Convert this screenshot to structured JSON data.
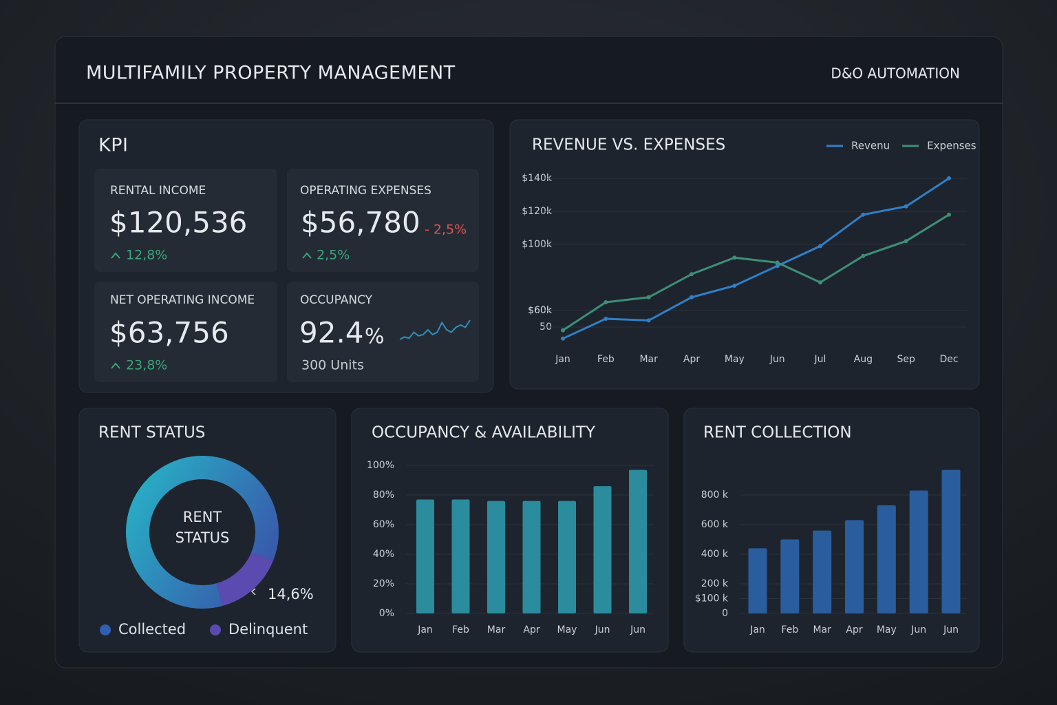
{
  "header": {
    "title": "MULTIFAMILY PROPERTY MANAGEMENT",
    "brand": "D&O AUTOMATION"
  },
  "kpi": {
    "title": "KPI",
    "cards": [
      {
        "label": "RENTAL INCOME",
        "value": "$120,536",
        "change": "12,8%"
      },
      {
        "label": "OPERATING EXPENSES",
        "value": "$56,780",
        "alt_change": "- 2,5%",
        "change": "2,5%"
      },
      {
        "label": "NET OPERATING INCOME",
        "value": "$63,756",
        "change": "23,8%"
      },
      {
        "label": "OCCUPANCY",
        "value": "92.4",
        "unit": "%",
        "note": "300 Units",
        "sparkline": [
          2,
          3,
          2.5,
          5,
          3.5,
          4,
          6,
          4,
          5,
          9,
          6,
          5,
          7,
          8,
          7,
          10
        ]
      }
    ]
  },
  "chart_data": [
    {
      "type": "line",
      "title": "REVENUE VS. EXPENSES",
      "categories": [
        "Jan",
        "Feb",
        "Mar",
        "Apr",
        "May",
        "Jun",
        "Jul",
        "Aug",
        "Sep",
        "Dec"
      ],
      "series": [
        {
          "name": "Revenu",
          "color": "#2f80c8",
          "values": [
            43,
            55,
            54,
            68,
            75,
            87,
            99,
            118,
            123,
            140
          ]
        },
        {
          "name": "Expenses",
          "color": "#3d8f78",
          "values": [
            48,
            65,
            68,
            82,
            92,
            89,
            77,
            93,
            102,
            118
          ]
        }
      ],
      "ylim": [
        40,
        140
      ],
      "yticks": [
        {
          "value": 140,
          "label": "$140k"
        },
        {
          "value": 120,
          "label": "$120k"
        },
        {
          "value": 100,
          "label": "$100k"
        },
        {
          "value": 60,
          "label": "$60k"
        },
        {
          "value": 60,
          "label": "$60k"
        },
        50
      ],
      "grid": true
    },
    {
      "type": "pie",
      "title": "RENT STATUS",
      "center_label": [
        "RENT",
        "STATUS"
      ],
      "categories": [
        "Collected",
        "Delinquent"
      ],
      "values": [
        85.4,
        14.6
      ],
      "value_labels": [
        null,
        "14,6%"
      ],
      "colors": [
        "#2e5fb0",
        "#5b4bb0"
      ]
    },
    {
      "type": "bar",
      "title": "OCCUPANCY & AVAILABILITY",
      "categories": [
        "Jan",
        "Feb",
        "Mar",
        "Apr",
        "May",
        "Jun",
        "Jun"
      ],
      "values": [
        77,
        77,
        76,
        76,
        76,
        86,
        97
      ],
      "color": "#2a8c9c",
      "ylim": [
        0,
        100
      ],
      "yticks": [
        {
          "value": 0,
          "label": "0%"
        },
        {
          "value": 20,
          "label": "20%"
        },
        {
          "value": 40,
          "label": "40%"
        },
        {
          "value": 60,
          "label": "60%"
        },
        {
          "value": 80,
          "label": "80%"
        },
        {
          "value": 100,
          "label": "100%"
        }
      ],
      "grid": true
    },
    {
      "type": "bar",
      "title": "RENT COLLECTION",
      "categories": [
        "Jan",
        "Feb",
        "Mar",
        "Apr",
        "May",
        "Jun",
        "Jun"
      ],
      "values": [
        440,
        500,
        560,
        630,
        730,
        830,
        970
      ],
      "color": "#2a5d9e",
      "ylim": [
        0,
        1000
      ],
      "yticks": [
        0,
        {
          "value": 200,
          "label": "200 k"
        },
        {
          "value": 400,
          "label": "400 k"
        },
        {
          "value": 600,
          "label": "600 k"
        },
        {
          "value": 800,
          "label": "800 k"
        },
        {
          "value": 100,
          "label": "$100 k"
        }
      ],
      "grid": true
    }
  ]
}
